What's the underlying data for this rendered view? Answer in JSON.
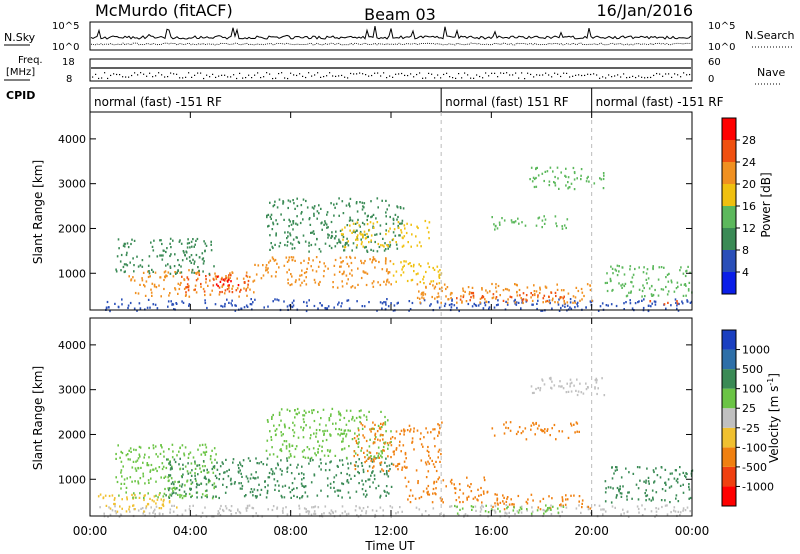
{
  "header": {
    "station": "McMurdo (fitACF)",
    "beam": "Beam 03",
    "date": "16/Jan/2016"
  },
  "top_panels": {
    "nsky_label": "N.Sky",
    "nsky_ticks": [
      "10^5",
      "10^0"
    ],
    "nsearch_label": "N.Search",
    "nsearch_ticks": [
      "10^5",
      "10^0"
    ],
    "freq_label": "Freq.",
    "freq_unit": "[MHz]",
    "freq_ticks": [
      "18",
      "8"
    ],
    "nave_label": "Nave",
    "nave_ticks": [
      "60",
      "0"
    ],
    "cpid_label": "CPID",
    "cpid_segments": [
      {
        "label": "normal (fast) -151 RF",
        "start_h": 0,
        "end_h": 14
      },
      {
        "label": "normal (fast) 151 RF",
        "start_h": 14,
        "end_h": 20
      },
      {
        "label": "normal (fast) -151 RF",
        "start_h": 20,
        "end_h": 24
      }
    ]
  },
  "axes": {
    "ylabel": "Slant Range [km]",
    "yticks": [
      "1000",
      "2000",
      "3000",
      "4000"
    ],
    "xlabel": "Time UT",
    "xticks": [
      "00:00",
      "04:00",
      "08:00",
      "12:00",
      "16:00",
      "20:00",
      "00:00"
    ]
  },
  "power_colorbar": {
    "label": "Power [dB]",
    "ticks": [
      "4",
      "8",
      "12",
      "16",
      "20",
      "24",
      "28"
    ],
    "colors": [
      "#0a1ee8",
      "#2a4fb8",
      "#3a8a55",
      "#5cb85c",
      "#f0c010",
      "#f09020",
      "#f05010",
      "#ff0000"
    ]
  },
  "velocity_colorbar": {
    "label": "Velocity [m s",
    "label_sup": "-1",
    "label_end": "]",
    "ticks": [
      "1000",
      "500",
      "100",
      "25",
      "-25",
      "-100",
      "-500",
      "-1000"
    ],
    "colors": [
      "#1a3fc0",
      "#2e6fa8",
      "#3a8a55",
      "#6bc445",
      "#c0c0c0",
      "#f0c030",
      "#f08010",
      "#f04010",
      "#ff0000"
    ]
  },
  "chart_data": {
    "type": "heatmap",
    "x_range_hours": [
      0,
      24
    ],
    "y_range_km": [
      180,
      4600
    ],
    "mode_changes_h": [
      14,
      20
    ],
    "grid": false,
    "power_regions": [
      {
        "t0": 0.5,
        "t1": 24,
        "r0": 180,
        "r1": 450,
        "color": "#2a4fb8"
      },
      {
        "t0": 1.5,
        "t1": 6.5,
        "r0": 500,
        "r1": 1100,
        "color": "#f09020"
      },
      {
        "t0": 3.5,
        "t1": 6.3,
        "r0": 600,
        "r1": 1000,
        "color": "#f05010"
      },
      {
        "t0": 5.0,
        "t1": 6.0,
        "r0": 700,
        "r1": 950,
        "color": "#ff0000"
      },
      {
        "t0": 1.0,
        "t1": 5.0,
        "r0": 1000,
        "r1": 1800,
        "color": "#3a8a55"
      },
      {
        "t0": 6.5,
        "t1": 12,
        "r0": 700,
        "r1": 1400,
        "color": "#f09020"
      },
      {
        "t0": 7.0,
        "t1": 12.5,
        "r0": 1500,
        "r1": 2700,
        "color": "#3a8a55"
      },
      {
        "t0": 10,
        "t1": 13.5,
        "r0": 1600,
        "r1": 2200,
        "color": "#f0c010"
      },
      {
        "t0": 12,
        "t1": 14,
        "r0": 800,
        "r1": 1300,
        "color": "#f0c010"
      },
      {
        "t0": 13,
        "t1": 20,
        "r0": 350,
        "r1": 800,
        "color": "#f09020"
      },
      {
        "t0": 14.5,
        "t1": 19,
        "r0": 400,
        "r1": 600,
        "color": "#f05010"
      },
      {
        "t0": 16,
        "t1": 19,
        "r0": 2000,
        "r1": 2300,
        "color": "#5cb85c"
      },
      {
        "t0": 17.5,
        "t1": 20.5,
        "r0": 2900,
        "r1": 3400,
        "color": "#5cb85c"
      },
      {
        "t0": 20.5,
        "t1": 24,
        "r0": 500,
        "r1": 1200,
        "color": "#5cb85c"
      },
      {
        "t0": 22,
        "t1": 23.5,
        "r0": 300,
        "r1": 500,
        "color": "#f05010"
      }
    ],
    "velocity_regions": [
      {
        "t0": 0.3,
        "t1": 24,
        "r0": 180,
        "r1": 450,
        "color": "#c0c0c0"
      },
      {
        "t0": 0.3,
        "t1": 3.5,
        "r0": 300,
        "r1": 700,
        "color": "#f0c030"
      },
      {
        "t0": 1.0,
        "t1": 5.0,
        "r0": 600,
        "r1": 1800,
        "color": "#6bc445"
      },
      {
        "t0": 3.0,
        "t1": 12,
        "r0": 600,
        "r1": 1500,
        "color": "#3a8a55"
      },
      {
        "t0": 7.0,
        "t1": 12,
        "r0": 1500,
        "r1": 2600,
        "color": "#6bc445"
      },
      {
        "t0": 10.5,
        "t1": 14,
        "r0": 1200,
        "r1": 2300,
        "color": "#f08010"
      },
      {
        "t0": 12.5,
        "t1": 16,
        "r0": 500,
        "r1": 1100,
        "color": "#f08010"
      },
      {
        "t0": 16,
        "t1": 20,
        "r0": 350,
        "r1": 700,
        "color": "#f08010"
      },
      {
        "t0": 16,
        "t1": 19.5,
        "r0": 1900,
        "r1": 2300,
        "color": "#f08010"
      },
      {
        "t0": 17.5,
        "t1": 20.5,
        "r0": 2900,
        "r1": 3300,
        "color": "#c0c0c0"
      },
      {
        "t0": 20.5,
        "t1": 24,
        "r0": 500,
        "r1": 1300,
        "color": "#3a8a55"
      },
      {
        "t0": 14.5,
        "t1": 19,
        "r0": 250,
        "r1": 450,
        "color": "#6bc445"
      }
    ]
  }
}
